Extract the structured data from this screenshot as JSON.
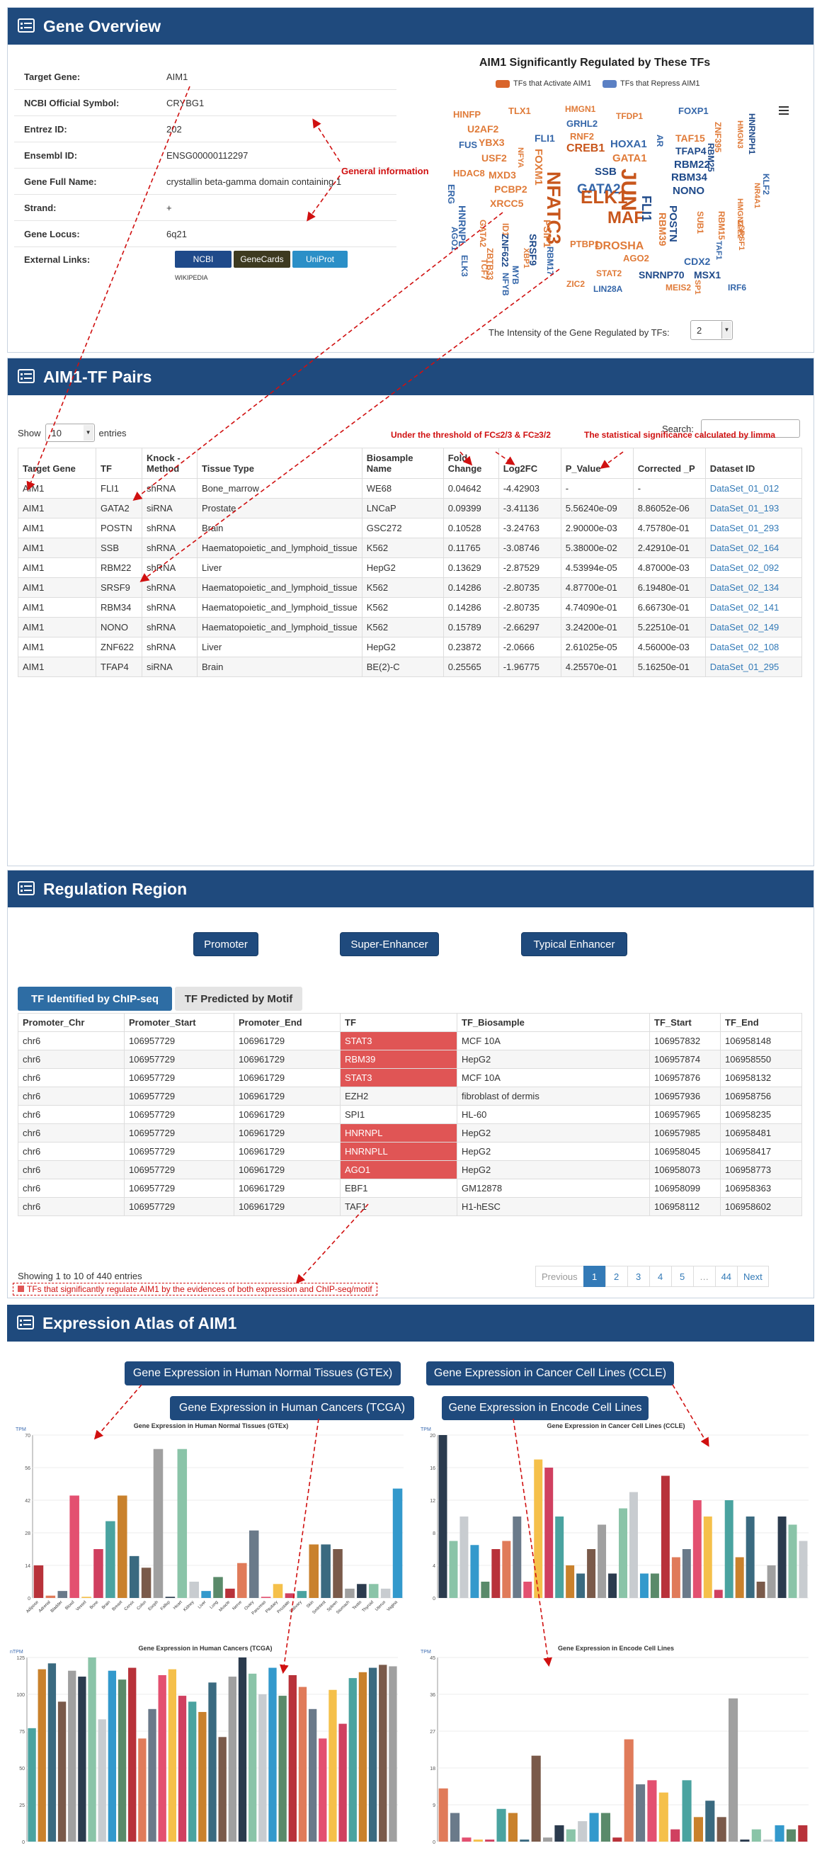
{
  "gene_overview": {
    "title": "Gene Overview",
    "fields": [
      {
        "k": "Target Gene:",
        "v": "AIM1"
      },
      {
        "k": "NCBI Official Symbol:",
        "v": "CRYBG1"
      },
      {
        "k": "Entrez ID:",
        "v": "202"
      },
      {
        "k": "Ensembl ID:",
        "v": "ENSG00000112297"
      },
      {
        "k": "Gene Full Name:",
        "v": "crystallin beta-gamma domain containing 1"
      },
      {
        "k": "Strand:",
        "v": "+"
      },
      {
        "k": "Gene Locus:",
        "v": "6q21"
      },
      {
        "k": "External Links:",
        "v": ""
      }
    ],
    "links": [
      "NCBI",
      "GeneCards",
      "UniProt",
      "WIKIPEDIA"
    ],
    "annotation": "General information",
    "cloud_title": "AIM1 Significantly Regulated by These TFs",
    "legend_activate": "TFs that Activate AIM1",
    "legend_repress": "TFs that Repress AIM1",
    "intensity_label": "The Intensity of the Gene Regulated by TFs:",
    "intensity_value": "2",
    "menu_icon": "hamburger-icon",
    "words": [
      "HINFP",
      "TLX1",
      "HMGN1",
      "FOXP1",
      "HNRNPH1",
      "U2AF2",
      "GRHL2",
      "TFDP1",
      "ZNF395",
      "FUS",
      "YBX3",
      "FLI1",
      "RNF2",
      "TAF15",
      "HMGN3",
      "USF2",
      "NFYA",
      "CREB1",
      "HOXA1",
      "TFAP4",
      "KLF2",
      "HDAC8",
      "GATA1",
      "AR",
      "RBM22",
      "RBM25",
      "MXD3",
      "FOXM1",
      "SSB",
      "RBM34",
      "NR4A1",
      "PCBP2",
      "GATA2",
      "NONO",
      "HMGN2",
      "ERG",
      "XRCC5",
      "ELK1",
      "RBM15",
      "HNRNPL",
      "GATA2",
      "JUN",
      "MAF",
      "ID1",
      "AGO1",
      "ZNF622",
      "NFATC3",
      "PTBP1",
      "FLI1",
      "SUB1",
      "ELK3",
      "SRSF9",
      "PSIP1",
      "DROSHA",
      "RBM39",
      "TLE2",
      "ZBTB33",
      "XBP1",
      "RBM17",
      "POSTN",
      "CDX2",
      "IRF6",
      "TCF7",
      "MYB",
      "AGO2",
      "SRSF1",
      "SNRNP70",
      "MSX1",
      "NFYB",
      "STAT2",
      "ZIC2",
      "LIN28A",
      "MEIS2",
      "SP1",
      "TAF1"
    ]
  },
  "tf_pairs": {
    "title": "AIM1-TF Pairs",
    "show_label": "Show",
    "entries_label": "entries",
    "show_value": "10",
    "search_label": "Search:",
    "note_threshold": "Under the threshold of FC≤2/3 & FC≥3/2",
    "note_stat": "The statistical significance calculated by limma",
    "columns": [
      "Target Gene",
      "TF",
      "Knock -Method",
      "Tissue Type",
      "Biosample Name",
      "Fold Change",
      "Log2FC",
      "P_Value",
      "Corrected _P",
      "Dataset ID"
    ],
    "rows": [
      [
        "AIM1",
        "FLI1",
        "shRNA",
        "Bone_marrow",
        "WE68",
        "0.04642",
        "-4.42903",
        "-",
        "-",
        "DataSet_01_012"
      ],
      [
        "AIM1",
        "GATA2",
        "siRNA",
        "Prostate",
        "LNCaP",
        "0.09399",
        "-3.41136",
        "5.56240e-09",
        "8.86052e-06",
        "DataSet_01_193"
      ],
      [
        "AIM1",
        "POSTN",
        "shRNA",
        "Brain",
        "GSC272",
        "0.10528",
        "-3.24763",
        "2.90000e-03",
        "4.75780e-01",
        "DataSet_01_293"
      ],
      [
        "AIM1",
        "SSB",
        "shRNA",
        "Haematopoietic_and_lymphoid_tissue",
        "K562",
        "0.11765",
        "-3.08746",
        "5.38000e-02",
        "2.42910e-01",
        "DataSet_02_164"
      ],
      [
        "AIM1",
        "RBM22",
        "shRNA",
        "Liver",
        "HepG2",
        "0.13629",
        "-2.87529",
        "4.53994e-05",
        "4.87000e-03",
        "DataSet_02_092"
      ],
      [
        "AIM1",
        "SRSF9",
        "shRNA",
        "Haematopoietic_and_lymphoid_tissue",
        "K562",
        "0.14286",
        "-2.80735",
        "4.87700e-01",
        "6.19480e-01",
        "DataSet_02_134"
      ],
      [
        "AIM1",
        "RBM34",
        "shRNA",
        "Haematopoietic_and_lymphoid_tissue",
        "K562",
        "0.14286",
        "-2.80735",
        "4.74090e-01",
        "6.66730e-01",
        "DataSet_02_141"
      ],
      [
        "AIM1",
        "NONO",
        "shRNA",
        "Haematopoietic_and_lymphoid_tissue",
        "K562",
        "0.15789",
        "-2.66297",
        "3.24200e-01",
        "5.22510e-01",
        "DataSet_02_149"
      ],
      [
        "AIM1",
        "ZNF622",
        "shRNA",
        "Liver",
        "HepG2",
        "0.23872",
        "-2.0666",
        "2.61025e-05",
        "4.56000e-03",
        "DataSet_02_108"
      ],
      [
        "AIM1",
        "TFAP4",
        "siRNA",
        "Brain",
        "BE(2)-C",
        "0.25565",
        "-1.96775",
        "4.25570e-01",
        "5.16250e-01",
        "DataSet_01_295"
      ]
    ]
  },
  "regulation": {
    "title": "Regulation Region",
    "buttons": [
      "Promoter",
      "Super-Enhancer",
      "Typical Enhancer"
    ],
    "tabs": [
      "TF Identified by ChIP-seq",
      "TF Predicted by Motif"
    ],
    "columns": [
      "Promoter_Chr",
      "Promoter_Start",
      "Promoter_End",
      "TF",
      "TF_Biosample",
      "TF_Start",
      "TF_End"
    ],
    "rows": [
      [
        "chr6",
        "106957729",
        "106961729",
        "STAT3",
        "MCF 10A",
        "106957832",
        "106958148",
        true
      ],
      [
        "chr6",
        "106957729",
        "106961729",
        "RBM39",
        "HepG2",
        "106957874",
        "106958550",
        true
      ],
      [
        "chr6",
        "106957729",
        "106961729",
        "STAT3",
        "MCF 10A",
        "106957876",
        "106958132",
        true
      ],
      [
        "chr6",
        "106957729",
        "106961729",
        "EZH2",
        "fibroblast of dermis",
        "106957936",
        "106958756",
        false
      ],
      [
        "chr6",
        "106957729",
        "106961729",
        "SPI1",
        "HL-60",
        "106957965",
        "106958235",
        false
      ],
      [
        "chr6",
        "106957729",
        "106961729",
        "HNRNPL",
        "HepG2",
        "106957985",
        "106958481",
        true
      ],
      [
        "chr6",
        "106957729",
        "106961729",
        "HNRNPLL",
        "HepG2",
        "106958045",
        "106958417",
        true
      ],
      [
        "chr6",
        "106957729",
        "106961729",
        "AGO1",
        "HepG2",
        "106958073",
        "106958773",
        true
      ],
      [
        "chr6",
        "106957729",
        "106961729",
        "EBF1",
        "GM12878",
        "106958099",
        "106958363",
        false
      ],
      [
        "chr6",
        "106957729",
        "106961729",
        "TAF1",
        "H1-hESC",
        "106958112",
        "106958602",
        false
      ]
    ],
    "showing": "Showing 1 to 10 of 440 entries",
    "pager": [
      "Previous",
      "1",
      "2",
      "3",
      "4",
      "5",
      "…",
      "44",
      "Next"
    ],
    "note": "TFs that significantly regulate AIM1 by the evidences of both expression and ChIP-seq/motif"
  },
  "atlas": {
    "title": "Expression Atlas of AIM1",
    "buttons": [
      "Gene Expression in Human Normal Tissues (GTEx)",
      "Gene Expression in Cancer Cell Lines (CCLE)",
      "Gene Expression in Human Cancers (TCGA)",
      "Gene Expression in Encode Cell Lines"
    ]
  },
  "chart_data": [
    {
      "type": "bar",
      "title": "Gene Expression in Human Normal Tissues (GTEx)",
      "ylabel": "TPM",
      "ylim": [
        0,
        70
      ],
      "categories": [
        "Adipose",
        "Adrenal",
        "Bladder",
        "Blood",
        "Vessel",
        "Bone",
        "Brain",
        "Breast",
        "Cervix",
        "Colon",
        "Esoph",
        "Fallop",
        "Heart",
        "Kidney",
        "Liver",
        "Lung",
        "Muscle",
        "Nerve",
        "Ovary",
        "Pancreas",
        "Pituitary",
        "Prostate",
        "Salivary",
        "Skin",
        "SmIntest",
        "Spleen",
        "Stomach",
        "Testis",
        "Thyroid",
        "Uterus",
        "Vagina"
      ],
      "values": [
        14,
        1,
        3,
        44,
        0.5,
        21,
        33,
        44,
        18,
        13,
        64,
        0.5,
        64,
        7,
        3,
        9,
        4,
        15,
        29,
        0.5,
        6,
        2,
        3,
        23,
        23,
        21,
        4,
        6,
        6,
        4,
        47
      ]
    },
    {
      "type": "bar",
      "title": "Gene Expression in Cancer Cell Lines (CCLE)",
      "ylabel": "TPM",
      "ylim": [
        0,
        20
      ],
      "values": [
        20,
        7,
        10,
        6.5,
        2,
        6,
        7,
        10,
        2,
        17,
        16,
        10,
        4,
        3,
        6,
        9,
        3,
        11,
        13,
        3,
        3,
        15,
        5,
        6,
        12,
        10,
        1,
        12,
        5,
        10,
        2,
        4,
        10,
        9,
        7
      ]
    },
    {
      "type": "bar",
      "title": "Gene Expression in Human Cancers (TCGA)",
      "ylabel": "nTPM",
      "ylim": [
        0,
        125
      ],
      "values": [
        77,
        117,
        121,
        95,
        116,
        112,
        128,
        83,
        116,
        110,
        118,
        70,
        90,
        113,
        117,
        99,
        95,
        88,
        108,
        71,
        112,
        129,
        114,
        100,
        118,
        99,
        113,
        105,
        90,
        70,
        103,
        80,
        111,
        115,
        118,
        120,
        119
      ]
    },
    {
      "type": "bar",
      "title": "Gene Expression in Encode Cell Lines",
      "ylabel": "TPM",
      "ylim": [
        0,
        45
      ],
      "values": [
        13,
        7,
        1,
        0.5,
        0.5,
        8,
        7,
        0.5,
        21,
        1,
        4,
        3,
        5,
        7,
        7,
        1,
        25,
        14,
        15,
        12,
        3,
        15,
        6,
        10,
        6,
        35,
        0.5,
        3,
        0.5,
        4,
        3,
        4
      ]
    }
  ]
}
